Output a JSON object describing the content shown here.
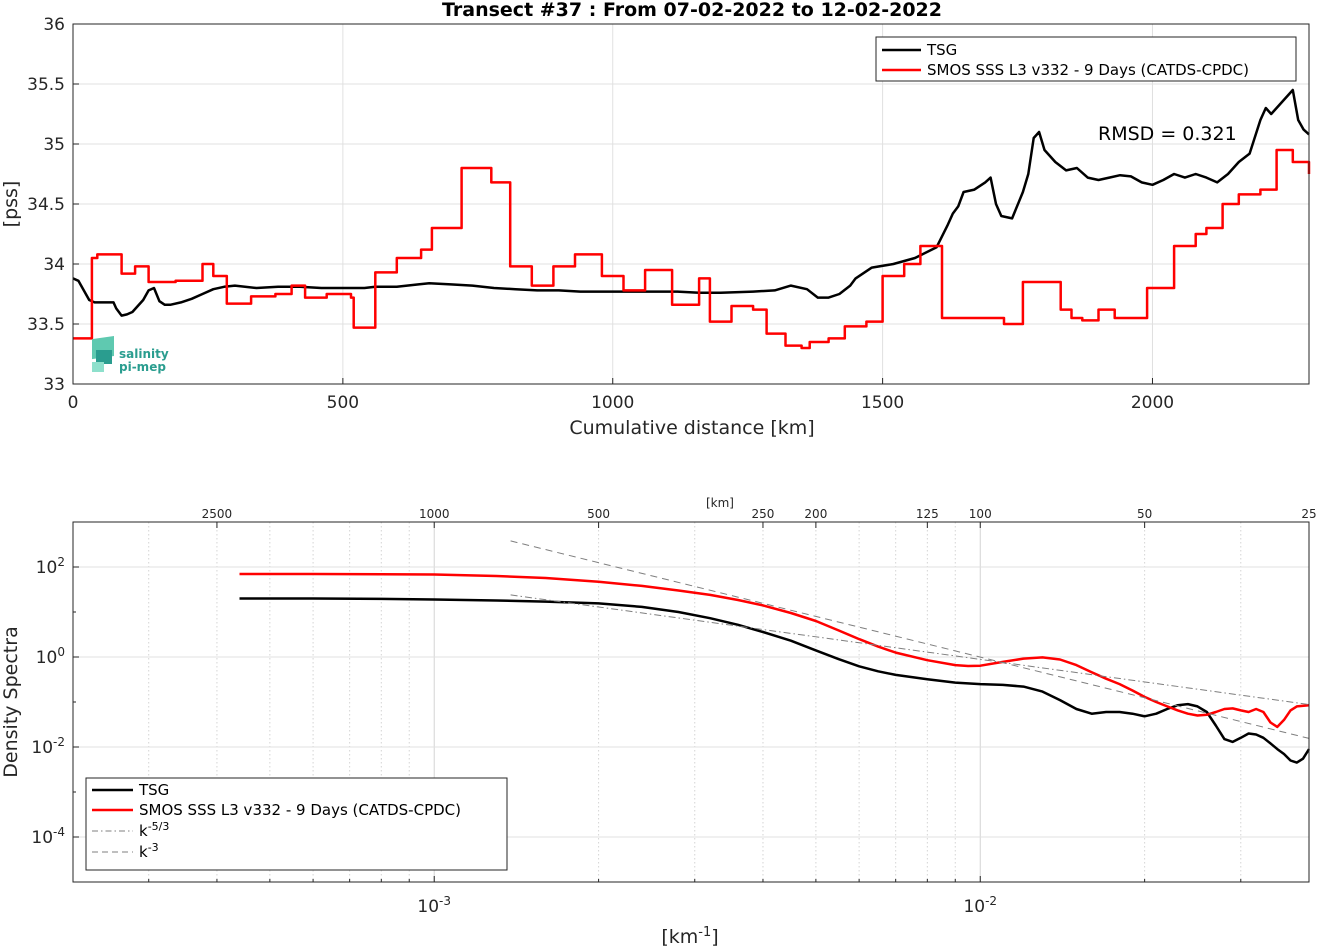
{
  "chart_data": [
    {
      "type": "line",
      "title": "Transect #37 : From 07-02-2022 to 12-02-2022",
      "xlabel": "Cumulative distance [km]",
      "ylabel": "[pss]",
      "xlim": [
        0,
        2290
      ],
      "ylim": [
        33,
        36
      ],
      "xticks": [
        0,
        500,
        1000,
        1500,
        2000
      ],
      "yticks": [
        33,
        33.5,
        34,
        34.5,
        35,
        35.5,
        36
      ],
      "xtick_labels": [
        "0",
        "500",
        "1000",
        "1500",
        "2000"
      ],
      "ytick_labels": [
        "33",
        "33.5",
        "34",
        "34.5",
        "35",
        "35.5",
        "36"
      ],
      "grid": true,
      "legend_position": "top-right",
      "annotation": "RMSD = 0.321",
      "logo": {
        "line1": "salinity",
        "line2": "pi-mep"
      },
      "series": [
        {
          "name": "TSG",
          "color": "#000000",
          "style": "solid",
          "x": [
            0,
            10,
            20,
            30,
            40,
            60,
            75,
            80,
            90,
            100,
            110,
            120,
            130,
            140,
            150,
            160,
            170,
            180,
            200,
            220,
            240,
            260,
            280,
            300,
            340,
            380,
            420,
            460,
            500,
            540,
            560,
            600,
            640,
            660,
            700,
            740,
            780,
            820,
            860,
            900,
            940,
            960,
            1000,
            1040,
            1080,
            1120,
            1160,
            1200,
            1260,
            1300,
            1330,
            1360,
            1380,
            1400,
            1420,
            1440,
            1450,
            1480,
            1520,
            1560,
            1600,
            1620,
            1630,
            1640,
            1650,
            1670,
            1690,
            1700,
            1710,
            1720,
            1740,
            1760,
            1770,
            1780,
            1790,
            1800,
            1820,
            1840,
            1860,
            1880,
            1900,
            1920,
            1940,
            1960,
            1980,
            2000,
            2020,
            2040,
            2060,
            2080,
            2100,
            2120,
            2140,
            2160,
            2180,
            2200,
            2210,
            2220,
            2240,
            2260,
            2270,
            2280,
            2290
          ],
          "y": [
            33.88,
            33.86,
            33.78,
            33.7,
            33.68,
            33.68,
            33.68,
            33.63,
            33.57,
            33.58,
            33.6,
            33.65,
            33.7,
            33.78,
            33.8,
            33.69,
            33.66,
            33.66,
            33.68,
            33.71,
            33.75,
            33.79,
            33.81,
            33.82,
            33.8,
            33.81,
            33.81,
            33.8,
            33.8,
            33.8,
            33.81,
            33.81,
            33.83,
            33.84,
            33.83,
            33.82,
            33.8,
            33.79,
            33.78,
            33.78,
            33.77,
            33.77,
            33.77,
            33.77,
            33.77,
            33.77,
            33.76,
            33.76,
            33.77,
            33.78,
            33.82,
            33.79,
            33.72,
            33.72,
            33.75,
            33.82,
            33.88,
            33.97,
            34.0,
            34.05,
            34.14,
            34.32,
            34.42,
            34.48,
            34.6,
            34.62,
            34.68,
            34.72,
            34.5,
            34.4,
            34.38,
            34.6,
            34.75,
            35.05,
            35.1,
            34.95,
            34.85,
            34.78,
            34.8,
            34.72,
            34.7,
            34.72,
            34.74,
            34.73,
            34.68,
            34.66,
            34.7,
            34.75,
            34.72,
            34.75,
            34.72,
            34.68,
            34.75,
            34.85,
            34.92,
            35.2,
            35.3,
            35.25,
            35.35,
            35.45,
            35.2,
            35.12,
            35.08
          ]
        },
        {
          "name": "SMOS SSS L3 v332 - 9 Days (CATDS-CPDC)",
          "color": "#ff0000",
          "style": "step",
          "x": [
            0,
            35,
            45,
            90,
            115,
            140,
            190,
            240,
            260,
            285,
            330,
            375,
            405,
            430,
            470,
            515,
            520,
            560,
            600,
            645,
            665,
            690,
            720,
            775,
            810,
            850,
            890,
            930,
            980,
            1020,
            1060,
            1110,
            1160,
            1180,
            1220,
            1260,
            1285,
            1320,
            1350,
            1365,
            1400,
            1430,
            1470,
            1500,
            1540,
            1570,
            1610,
            1645,
            1680,
            1700,
            1725,
            1760,
            1800,
            1830,
            1850,
            1870,
            1900,
            1930,
            1960,
            1990,
            2020,
            2040,
            2060,
            2080,
            2100,
            2130,
            2160,
            2200,
            2230,
            2260,
            2290
          ],
          "y": [
            33.38,
            34.05,
            34.08,
            33.92,
            33.98,
            33.85,
            33.86,
            34.0,
            33.9,
            33.67,
            33.73,
            33.75,
            33.82,
            33.72,
            33.75,
            33.72,
            33.47,
            33.93,
            34.05,
            34.12,
            34.3,
            34.3,
            34.8,
            34.68,
            33.98,
            33.82,
            33.98,
            34.08,
            33.9,
            33.78,
            33.95,
            33.66,
            33.88,
            33.52,
            33.65,
            33.62,
            33.42,
            33.32,
            33.3,
            33.35,
            33.38,
            33.48,
            33.52,
            33.9,
            34.0,
            34.15,
            33.55,
            33.55,
            33.55,
            33.55,
            33.5,
            33.85,
            33.85,
            33.62,
            33.55,
            33.53,
            33.62,
            33.55,
            33.55,
            33.8,
            33.8,
            34.15,
            34.15,
            34.25,
            34.3,
            34.5,
            34.58,
            34.62,
            34.95,
            34.85,
            34.75
          ]
        }
      ]
    },
    {
      "type": "line",
      "title": "",
      "xlabel": "[km-1]",
      "xlabel_base": "[km",
      "xlabel_sup": "-1",
      "xlabel_tail": "]",
      "ylabel": "Density Spectra",
      "xscale": "log",
      "yscale": "log",
      "xlim": [
        0.000218,
        0.04
      ],
      "ylim": [
        1e-05,
        1000
      ],
      "xticks_labels": [
        {
          "value": 0.001,
          "base": "10",
          "exp": "-3"
        },
        {
          "value": 0.01,
          "base": "10",
          "exp": "-2"
        }
      ],
      "yticks_labels": [
        {
          "value": 100,
          "base": "10",
          "exp": "2"
        },
        {
          "value": 1,
          "base": "10",
          "exp": "0"
        },
        {
          "value": 0.01,
          "base": "10",
          "exp": "-2"
        },
        {
          "value": 0.0001,
          "base": "10",
          "exp": "-4"
        }
      ],
      "top_axis_label": "[km]",
      "top_axis_ticks": [
        2500,
        1000,
        500,
        250,
        200,
        125,
        100,
        50,
        25
      ],
      "top_axis_tick_labels": [
        "2500",
        "1000",
        "500",
        "250",
        "200",
        "125",
        "100",
        "50",
        "25"
      ],
      "grid": true,
      "legend_position": "bottom-left",
      "series": [
        {
          "name": "TSG",
          "color": "#000000",
          "style": "solid",
          "x": [
            0.00044,
            0.0006,
            0.0008,
            0.001,
            0.0013,
            0.0016,
            0.002,
            0.0024,
            0.0028,
            0.0032,
            0.0036,
            0.004,
            0.0045,
            0.005,
            0.0055,
            0.006,
            0.0065,
            0.007,
            0.008,
            0.009,
            0.01,
            0.011,
            0.012,
            0.013,
            0.014,
            0.015,
            0.016,
            0.017,
            0.018,
            0.019,
            0.02,
            0.021,
            0.022,
            0.023,
            0.024,
            0.025,
            0.026,
            0.027,
            0.028,
            0.029,
            0.03,
            0.031,
            0.032,
            0.033,
            0.034,
            0.035,
            0.036,
            0.037,
            0.038,
            0.039,
            0.04
          ],
          "y": [
            20,
            20,
            19.5,
            19,
            18,
            17,
            15.5,
            13,
            10,
            7.3,
            5.2,
            3.6,
            2.3,
            1.4,
            0.9,
            0.62,
            0.48,
            0.4,
            0.32,
            0.27,
            0.25,
            0.24,
            0.22,
            0.17,
            0.11,
            0.07,
            0.055,
            0.06,
            0.06,
            0.055,
            0.048,
            0.055,
            0.07,
            0.085,
            0.09,
            0.08,
            0.06,
            0.03,
            0.015,
            0.013,
            0.016,
            0.02,
            0.019,
            0.016,
            0.012,
            0.009,
            0.007,
            0.005,
            0.0045,
            0.0055,
            0.009
          ]
        },
        {
          "name": "SMOS SSS L3 v332 - 9 Days (CATDS-CPDC)",
          "color": "#ff0000",
          "style": "solid",
          "x": [
            0.00044,
            0.0006,
            0.0008,
            0.001,
            0.0013,
            0.0016,
            0.002,
            0.0024,
            0.0028,
            0.0032,
            0.0036,
            0.004,
            0.0045,
            0.005,
            0.0055,
            0.006,
            0.0065,
            0.007,
            0.008,
            0.009,
            0.0095,
            0.01,
            0.011,
            0.012,
            0.013,
            0.014,
            0.015,
            0.016,
            0.017,
            0.018,
            0.019,
            0.02,
            0.021,
            0.022,
            0.023,
            0.024,
            0.025,
            0.026,
            0.027,
            0.028,
            0.029,
            0.03,
            0.031,
            0.032,
            0.033,
            0.034,
            0.035,
            0.036,
            0.037,
            0.038,
            0.04
          ],
          "y": [
            70,
            70,
            69,
            68,
            63,
            57,
            47,
            38,
            30,
            24,
            18.5,
            14,
            9.5,
            6.3,
            3.9,
            2.5,
            1.7,
            1.25,
            0.85,
            0.66,
            0.63,
            0.64,
            0.78,
            0.92,
            0.98,
            0.88,
            0.66,
            0.46,
            0.33,
            0.25,
            0.18,
            0.13,
            0.1,
            0.08,
            0.065,
            0.055,
            0.05,
            0.052,
            0.06,
            0.07,
            0.072,
            0.065,
            0.06,
            0.07,
            0.06,
            0.035,
            0.028,
            0.04,
            0.065,
            0.08,
            0.085
          ]
        },
        {
          "name": "k-5/3",
          "label_base": "k",
          "label_sup": "-5/3",
          "color": "#7f7f7f",
          "style": "dashdot",
          "x": [
            0.00138,
            0.04
          ],
          "y": [
            24,
            0.088
          ]
        },
        {
          "name": "k-3",
          "label_base": "k",
          "label_sup": "-3",
          "color": "#7f7f7f",
          "style": "dashed",
          "x": [
            0.00138,
            0.04
          ],
          "y": [
            380,
            0.0155
          ]
        }
      ]
    }
  ]
}
